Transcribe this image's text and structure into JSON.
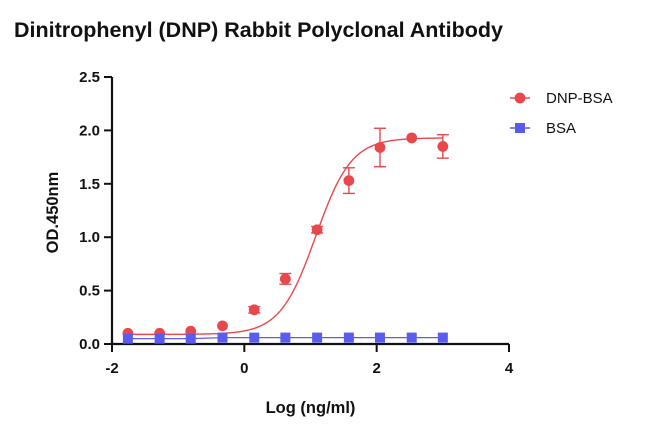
{
  "chart_data": {
    "type": "scatter",
    "title": "Dinitrophenyl (DNP) Rabbit Polyclonal Antibody",
    "xlabel": "Log (ng/ml)",
    "ylabel": "OD.450nm",
    "xlim": [
      -2,
      4
    ],
    "ylim": [
      0,
      2.5
    ],
    "xticks": [
      "-2",
      "0",
      "2",
      "4"
    ],
    "xtick_values": [
      -2,
      0,
      2,
      4
    ],
    "yticks": [
      "0.0",
      "0.5",
      "1.0",
      "1.5",
      "2.0",
      "2.5"
    ],
    "ytick_values": [
      0,
      0.5,
      1.0,
      1.5,
      2.0,
      2.5
    ],
    "grid": false,
    "legend_position": "top-right",
    "fit": "sigmoidal curve through DNP-BSA points",
    "series": [
      {
        "name": "DNP-BSA",
        "marker": "circle",
        "color": "#e8484b",
        "x": [
          -1.76,
          -1.28,
          -0.81,
          -0.33,
          0.15,
          0.62,
          1.1,
          1.58,
          2.05,
          2.53,
          3.0
        ],
        "y": [
          0.1,
          0.1,
          0.12,
          0.17,
          0.32,
          0.61,
          1.07,
          1.53,
          1.84,
          1.93,
          1.85
        ],
        "error": [
          0.02,
          0.02,
          0.02,
          0.02,
          0.03,
          0.05,
          0.03,
          0.12,
          0.18,
          0.02,
          0.11
        ]
      },
      {
        "name": "BSA",
        "marker": "square",
        "color": "#5a5cf0",
        "x": [
          -1.76,
          -1.28,
          -0.81,
          -0.33,
          0.15,
          0.62,
          1.1,
          1.58,
          2.05,
          2.53,
          3.0
        ],
        "y": [
          0.05,
          0.05,
          0.05,
          0.06,
          0.06,
          0.06,
          0.06,
          0.06,
          0.06,
          0.06,
          0.06
        ]
      }
    ]
  }
}
